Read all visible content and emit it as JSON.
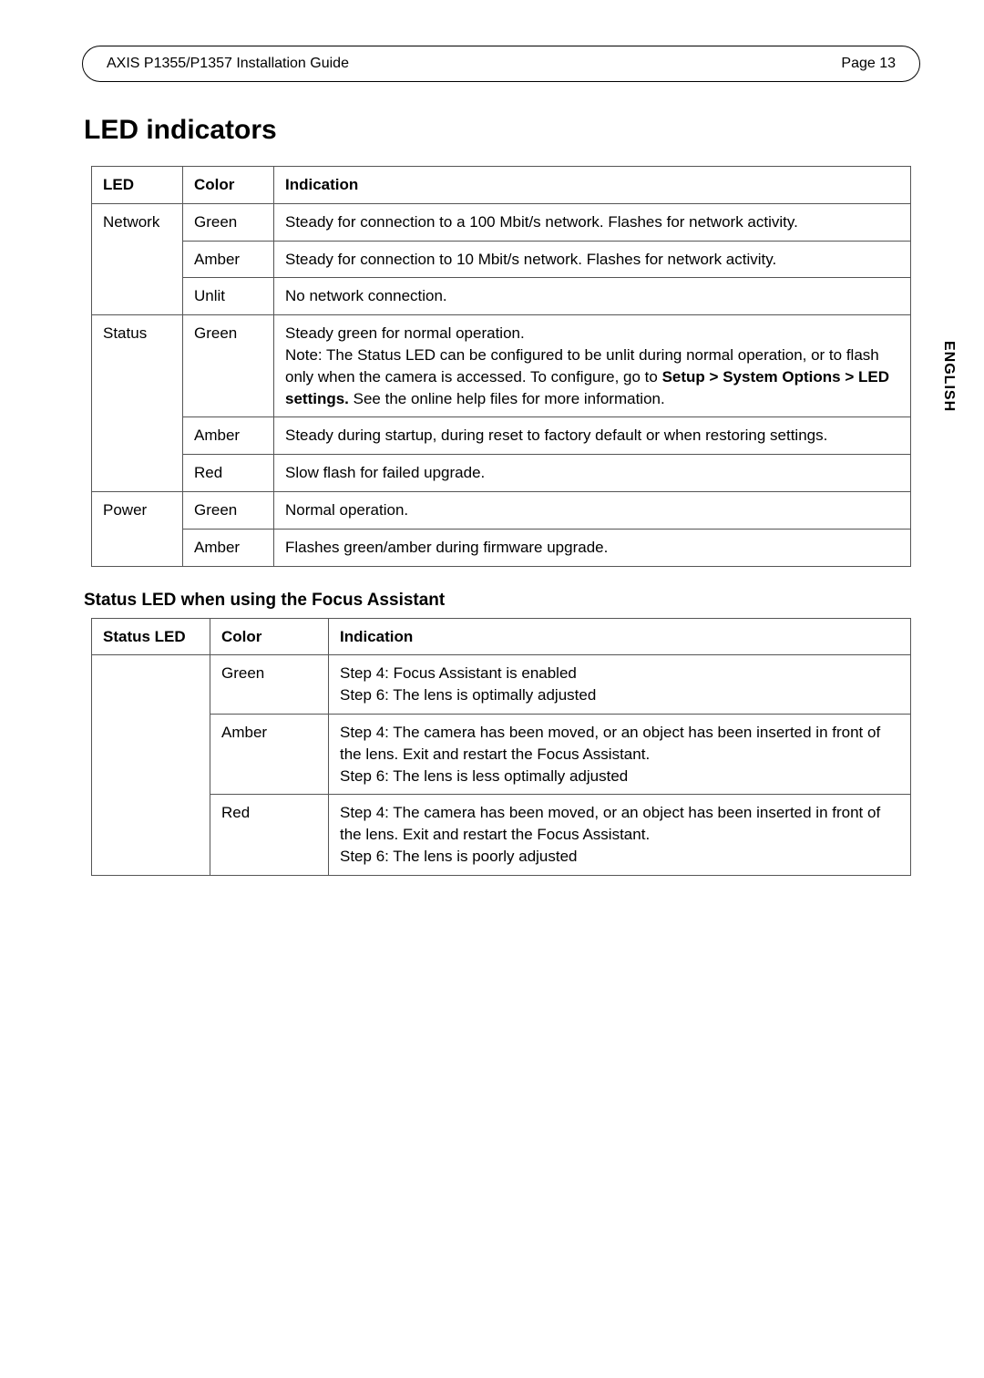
{
  "header": {
    "left": "AXIS P1355/P1357 Installation Guide",
    "right": "Page 13"
  },
  "side_tab": "ENGLISH",
  "section_title": "LED indicators",
  "table1": {
    "headers": {
      "c1": "LED",
      "c2": "Color",
      "c3": "Indication"
    },
    "groups": [
      {
        "led": "Network",
        "rows": [
          {
            "color": "Green",
            "indication": "Steady for connection to a 100 Mbit/s network. Flashes for network activity."
          },
          {
            "color": "Amber",
            "indication": "Steady for connection to 10 Mbit/s network. Flashes for network activity."
          },
          {
            "color": "Unlit",
            "indication": "No network connection."
          }
        ]
      },
      {
        "led": "Status",
        "rows": [
          {
            "color": "Green",
            "indication_pre": "Steady green for normal operation.\nNote: The Status LED can be configured to be unlit during normal operation, or to flash only when the camera is accessed. To configure, go to ",
            "indication_bold": "Setup > System Options > LED settings.",
            "indication_post": " See the online help files for more information."
          },
          {
            "color": "Amber",
            "indication": "Steady during startup, during reset to factory default or when restoring settings."
          },
          {
            "color": "Red",
            "indication": "Slow flash for failed upgrade."
          }
        ]
      },
      {
        "led": "Power",
        "rows": [
          {
            "color": "Green",
            "indication": "Normal operation."
          },
          {
            "color": "Amber",
            "indication": "Flashes green/amber during firmware upgrade."
          }
        ]
      }
    ]
  },
  "subsection_title": "Status LED when using the Focus Assistant",
  "table2": {
    "headers": {
      "c1": "Status LED",
      "c2": "Color",
      "c3": "Indication"
    },
    "led": "",
    "rows": [
      {
        "color": "Green",
        "lines": [
          "Step 4: Focus Assistant is enabled",
          "Step 6: The lens is optimally adjusted"
        ]
      },
      {
        "color": "Amber",
        "lines": [
          "Step 4: The camera has been moved, or an object has been inserted in front of the lens. Exit and restart the Focus Assistant.",
          "Step 6: The lens is less optimally adjusted"
        ]
      },
      {
        "color": "Red",
        "lines": [
          "Step 4: The camera has been moved, or an object has been inserted in front of the lens. Exit and restart the Focus Assistant.",
          "Step 6: The lens is poorly adjusted"
        ]
      }
    ]
  }
}
